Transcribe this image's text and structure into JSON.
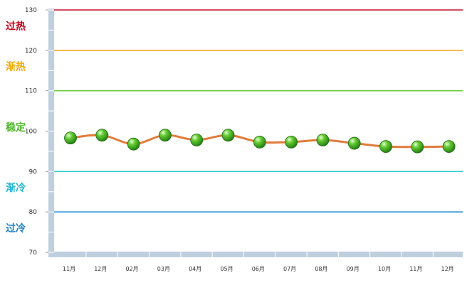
{
  "chart_data": {
    "type": "line",
    "title": "",
    "xlabel": "",
    "ylabel": "",
    "categories": [
      "11月",
      "12月",
      "02月",
      "03月",
      "04月",
      "05月",
      "06月",
      "07月",
      "08月",
      "09月",
      "10月",
      "11月",
      "12月"
    ],
    "series": [
      {
        "values": [
          98.3,
          99.0,
          96.8,
          99.0,
          97.8,
          99.0,
          97.3,
          97.3,
          97.8,
          97.0,
          96.2,
          96.1,
          96.2
        ],
        "color": "#e07b39",
        "marker_color": "#3aa82a"
      }
    ],
    "ylim": [
      70,
      130
    ],
    "yticks": [
      70,
      80,
      90,
      100,
      110,
      120,
      130
    ],
    "grid": false,
    "legend": "none",
    "reference_lines": [
      {
        "value": 130,
        "color": "#c8102e"
      },
      {
        "value": 120,
        "color": "#f5a623"
      },
      {
        "value": 110,
        "color": "#66cc33"
      },
      {
        "value": 90,
        "color": "#33cccc"
      },
      {
        "value": 80,
        "color": "#2a8fd8"
      }
    ],
    "zones": [
      {
        "label": "过热",
        "value": 126,
        "color": "#c0001a"
      },
      {
        "label": "渐热",
        "value": 116,
        "color": "#f5a800"
      },
      {
        "label": "稳定",
        "value": 101,
        "color": "#4cb82a"
      },
      {
        "label": "渐冷",
        "value": 86,
        "color": "#1fb3d6"
      },
      {
        "label": "过冷",
        "value": 76,
        "color": "#1f7fc4"
      }
    ]
  }
}
